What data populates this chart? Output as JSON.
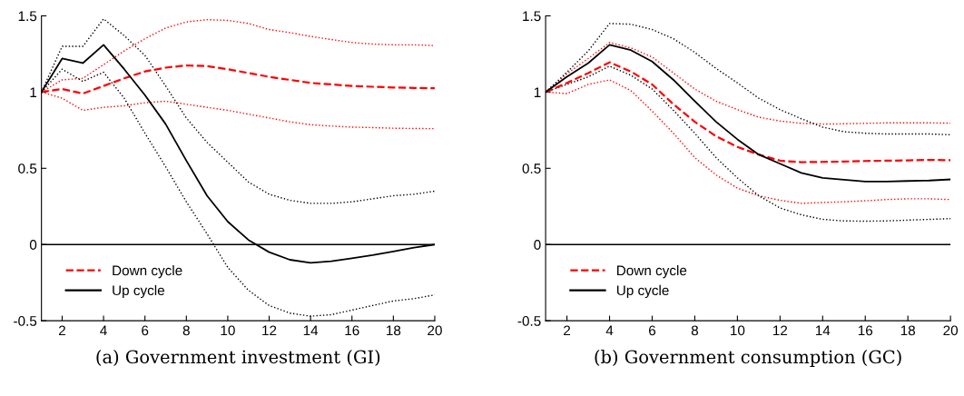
{
  "chart_data": [
    {
      "type": "line",
      "title": "(a) Government investment (GI)",
      "x": [
        1,
        2,
        3,
        4,
        5,
        6,
        7,
        8,
        9,
        10,
        11,
        12,
        13,
        14,
        15,
        16,
        17,
        18,
        19,
        20
      ],
      "xlim": [
        1,
        20
      ],
      "xticks": [
        2,
        4,
        6,
        8,
        10,
        12,
        14,
        16,
        18,
        20
      ],
      "ylim": [
        -0.5,
        1.5
      ],
      "yticks": [
        {
          "value": -0.5,
          "label": "-0.5"
        },
        0,
        0.5,
        1,
        1.5
      ],
      "legend": "bottom left",
      "ref_lines": [
        {
          "axis": "y",
          "value": 0,
          "color": "#000000"
        }
      ],
      "series": [
        {
          "color": "#ff0000",
          "line_style": "dotted",
          "values": [
            1.0,
            0.96,
            0.88,
            0.9,
            0.91,
            0.93,
            0.94,
            0.92,
            0.9,
            0.88,
            0.855,
            0.83,
            0.805,
            0.786,
            0.777,
            0.77,
            0.767,
            0.763,
            0.761,
            0.76
          ]
        },
        {
          "color": "#ff0000",
          "line_style": "dotted",
          "values": [
            1.0,
            1.08,
            1.09,
            1.18,
            1.27,
            1.35,
            1.42,
            1.46,
            1.475,
            1.47,
            1.45,
            1.41,
            1.39,
            1.365,
            1.345,
            1.325,
            1.315,
            1.31,
            1.31,
            1.305
          ]
        },
        {
          "color": "#000000",
          "line_style": "dotted",
          "values": [
            1.0,
            1.15,
            1.07,
            1.13,
            0.96,
            0.73,
            0.51,
            0.28,
            0.07,
            -0.15,
            -0.3,
            -0.4,
            -0.45,
            -0.47,
            -0.46,
            -0.43,
            -0.4,
            -0.37,
            -0.355,
            -0.33
          ]
        },
        {
          "color": "#000000",
          "line_style": "dotted",
          "values": [
            1.0,
            1.3,
            1.3,
            1.48,
            1.37,
            1.24,
            1.04,
            0.83,
            0.67,
            0.54,
            0.41,
            0.33,
            0.29,
            0.27,
            0.27,
            0.28,
            0.3,
            0.32,
            0.33,
            0.35
          ]
        },
        {
          "name": "Down cycle",
          "color": "#ff0000",
          "line_style": "dashed",
          "values": [
            1.0,
            1.02,
            0.99,
            1.04,
            1.09,
            1.135,
            1.16,
            1.175,
            1.17,
            1.15,
            1.125,
            1.1,
            1.08,
            1.06,
            1.05,
            1.04,
            1.035,
            1.03,
            1.027,
            1.025
          ]
        },
        {
          "name": "Up cycle",
          "color": "#000000",
          "line_style": "solid",
          "values": [
            1.0,
            1.22,
            1.19,
            1.31,
            1.15,
            0.98,
            0.79,
            0.55,
            0.32,
            0.15,
            0.03,
            -0.05,
            -0.1,
            -0.12,
            -0.11,
            -0.09,
            -0.07,
            -0.045,
            -0.02,
            0.0
          ]
        }
      ]
    },
    {
      "type": "line",
      "title": "(b) Government consumption (GC)",
      "x": [
        1,
        2,
        3,
        4,
        5,
        6,
        7,
        8,
        9,
        10,
        11,
        12,
        13,
        14,
        15,
        16,
        17,
        18,
        19,
        20
      ],
      "xlim": [
        1,
        20
      ],
      "xticks": [
        2,
        4,
        6,
        8,
        10,
        12,
        14,
        16,
        18,
        20
      ],
      "ylim": [
        -0.5,
        1.5
      ],
      "yticks": [
        {
          "value": -0.5,
          "label": "-0.5"
        },
        0,
        0.5,
        1,
        1.5
      ],
      "legend": "bottom left",
      "ref_lines": [
        {
          "axis": "y",
          "value": 0,
          "color": "#000000"
        }
      ],
      "series": [
        {
          "color": "#ff0000",
          "line_style": "dotted",
          "values": [
            1.0,
            0.99,
            1.05,
            1.08,
            1.01,
            0.875,
            0.73,
            0.57,
            0.456,
            0.37,
            0.32,
            0.29,
            0.27,
            0.276,
            0.28,
            0.287,
            0.295,
            0.3,
            0.3,
            0.295
          ]
        },
        {
          "color": "#ff0000",
          "line_style": "dotted",
          "values": [
            1.0,
            1.12,
            1.22,
            1.325,
            1.29,
            1.23,
            1.125,
            1.02,
            0.94,
            0.885,
            0.835,
            0.81,
            0.795,
            0.79,
            0.792,
            0.795,
            0.798,
            0.798,
            0.798,
            0.796
          ]
        },
        {
          "color": "#000000",
          "line_style": "dotted",
          "values": [
            1.0,
            1.05,
            1.1,
            1.17,
            1.11,
            1.02,
            0.88,
            0.73,
            0.57,
            0.437,
            0.32,
            0.24,
            0.195,
            0.165,
            0.155,
            0.153,
            0.155,
            0.16,
            0.165,
            0.17
          ]
        },
        {
          "color": "#000000",
          "line_style": "dotted",
          "values": [
            1.0,
            1.13,
            1.27,
            1.45,
            1.445,
            1.41,
            1.35,
            1.26,
            1.155,
            1.06,
            0.96,
            0.885,
            0.825,
            0.77,
            0.74,
            0.73,
            0.725,
            0.725,
            0.725,
            0.72
          ]
        },
        {
          "name": "Down cycle",
          "color": "#ff0000",
          "line_style": "dashed",
          "values": [
            1.0,
            1.06,
            1.125,
            1.195,
            1.135,
            1.05,
            0.92,
            0.805,
            0.71,
            0.64,
            0.59,
            0.55,
            0.54,
            0.542,
            0.544,
            0.548,
            0.55,
            0.552,
            0.555,
            0.553
          ]
        },
        {
          "name": "Up cycle",
          "color": "#000000",
          "line_style": "solid",
          "values": [
            1.0,
            1.1,
            1.19,
            1.31,
            1.275,
            1.2,
            1.08,
            0.94,
            0.805,
            0.69,
            0.59,
            0.53,
            0.47,
            0.437,
            0.425,
            0.413,
            0.413,
            0.417,
            0.42,
            0.427
          ]
        }
      ]
    }
  ]
}
